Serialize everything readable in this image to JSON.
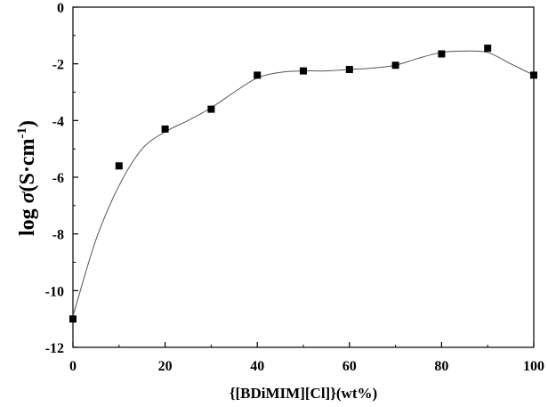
{
  "chart_data": {
    "type": "scatter",
    "title": "",
    "xlabel": "{[BDiMIM][Cl]}(wt%)",
    "ylabel": {
      "prefix": "log ",
      "symbol": "σ",
      "unit": "(S·cm",
      "superscript": "-1",
      "suffix": ")"
    },
    "xlim": [
      0,
      100
    ],
    "ylim": [
      -12,
      0
    ],
    "xticks": [
      0,
      20,
      40,
      60,
      80,
      100
    ],
    "yticks": [
      0,
      -2,
      -4,
      -6,
      -8,
      -10,
      -12
    ],
    "xtick_labels": [
      "0",
      "20",
      "40",
      "60",
      "80",
      "100"
    ],
    "ytick_labels": [
      "0",
      "-2",
      "-4",
      "-6",
      "-8",
      "-10",
      "-12"
    ],
    "grid": false,
    "legend": "none",
    "series": [
      {
        "marker": "square",
        "color": "#000000",
        "x": [
          0,
          10,
          20,
          30,
          40,
          50,
          60,
          70,
          80,
          90,
          100
        ],
        "y": [
          -11.0,
          -5.6,
          -4.3,
          -3.6,
          -2.4,
          -2.25,
          -2.2,
          -2.05,
          -1.65,
          -1.45,
          -2.4
        ]
      }
    ],
    "fit_curve": {
      "style": "smooth-line",
      "color": "#555555",
      "x": [
        0,
        5,
        10,
        15,
        20,
        25,
        30,
        35,
        40,
        45,
        50,
        55,
        60,
        65,
        70,
        75,
        80,
        85,
        90,
        95,
        100
      ],
      "y": [
        -10.9,
        -8.2,
        -6.3,
        -5.0,
        -4.4,
        -4.0,
        -3.55,
        -3.0,
        -2.5,
        -2.3,
        -2.25,
        -2.25,
        -2.2,
        -2.15,
        -2.05,
        -1.8,
        -1.6,
        -1.55,
        -1.6,
        -2.0,
        -2.4
      ]
    }
  }
}
